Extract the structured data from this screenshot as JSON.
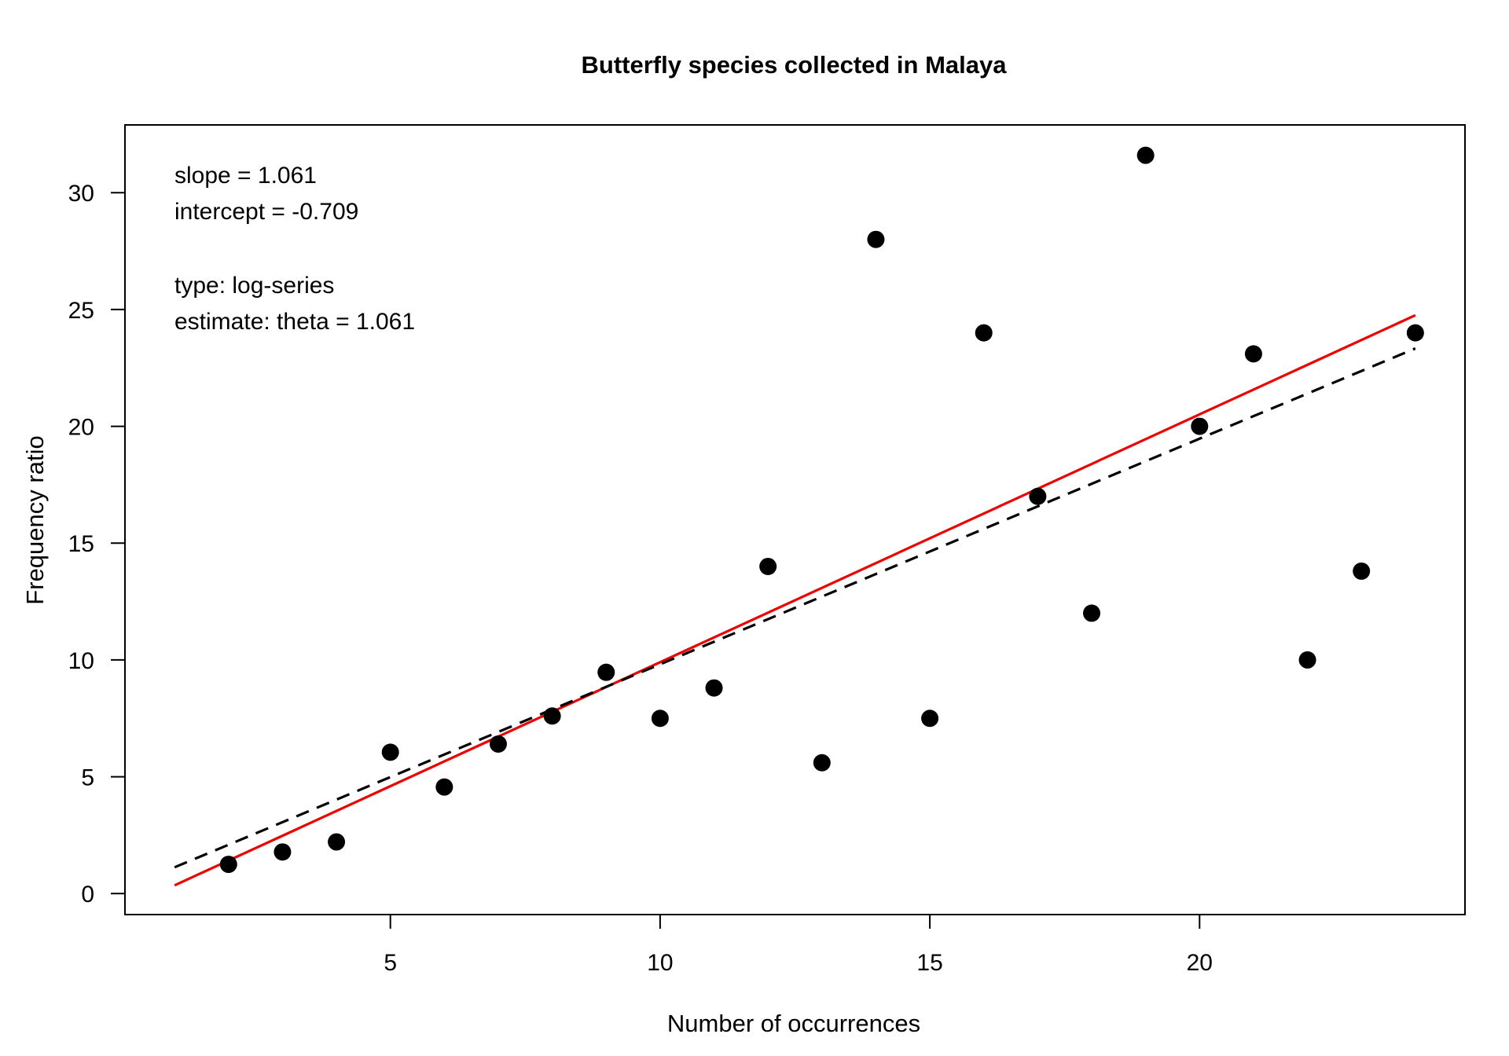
{
  "chart_data": {
    "type": "scatter",
    "title": "Butterfly species collected in Malaya",
    "xlabel": "Number of occurrences",
    "ylabel": "Frequency ratio",
    "xlim": [
      0.08,
      24.92
    ],
    "ylim": [
      -0.9,
      32.9
    ],
    "xticks": [
      5,
      10,
      15,
      20
    ],
    "yticks": [
      0,
      5,
      10,
      15,
      20,
      25,
      30
    ],
    "x_tick_labels": [
      "5",
      "10",
      "15",
      "20"
    ],
    "y_tick_labels": [
      "0",
      "5",
      "10",
      "15",
      "20",
      "25",
      "30"
    ],
    "grid": false,
    "points": {
      "x": [
        2,
        3,
        4,
        5,
        6,
        7,
        8,
        9,
        10,
        11,
        12,
        13,
        14,
        15,
        16,
        17,
        18,
        19,
        20,
        21,
        22,
        23,
        24
      ],
      "y": [
        1.25,
        1.78,
        2.21,
        6.05,
        4.56,
        6.4,
        7.6,
        9.47,
        7.5,
        8.8,
        14.0,
        5.6,
        28.0,
        7.5,
        24.0,
        17.0,
        12.0,
        31.6,
        20.0,
        23.1,
        10.0,
        13.8,
        24.0
      ],
      "color": "#000000"
    },
    "lines": [
      {
        "style": "solid",
        "color": "#ee0000",
        "slope": 1.061,
        "intercept": -0.709,
        "x_range": [
          1,
          24
        ]
      },
      {
        "style": "dashed",
        "color": "#000000",
        "slope": 0.9656,
        "intercept": 0.1579,
        "x_range": [
          1,
          24
        ]
      }
    ],
    "annotations": [
      "slope = 1.061",
      "intercept = -0.709",
      "type: log-series",
      "estimate: theta = 1.061"
    ],
    "annotation_placement": "top-left"
  }
}
